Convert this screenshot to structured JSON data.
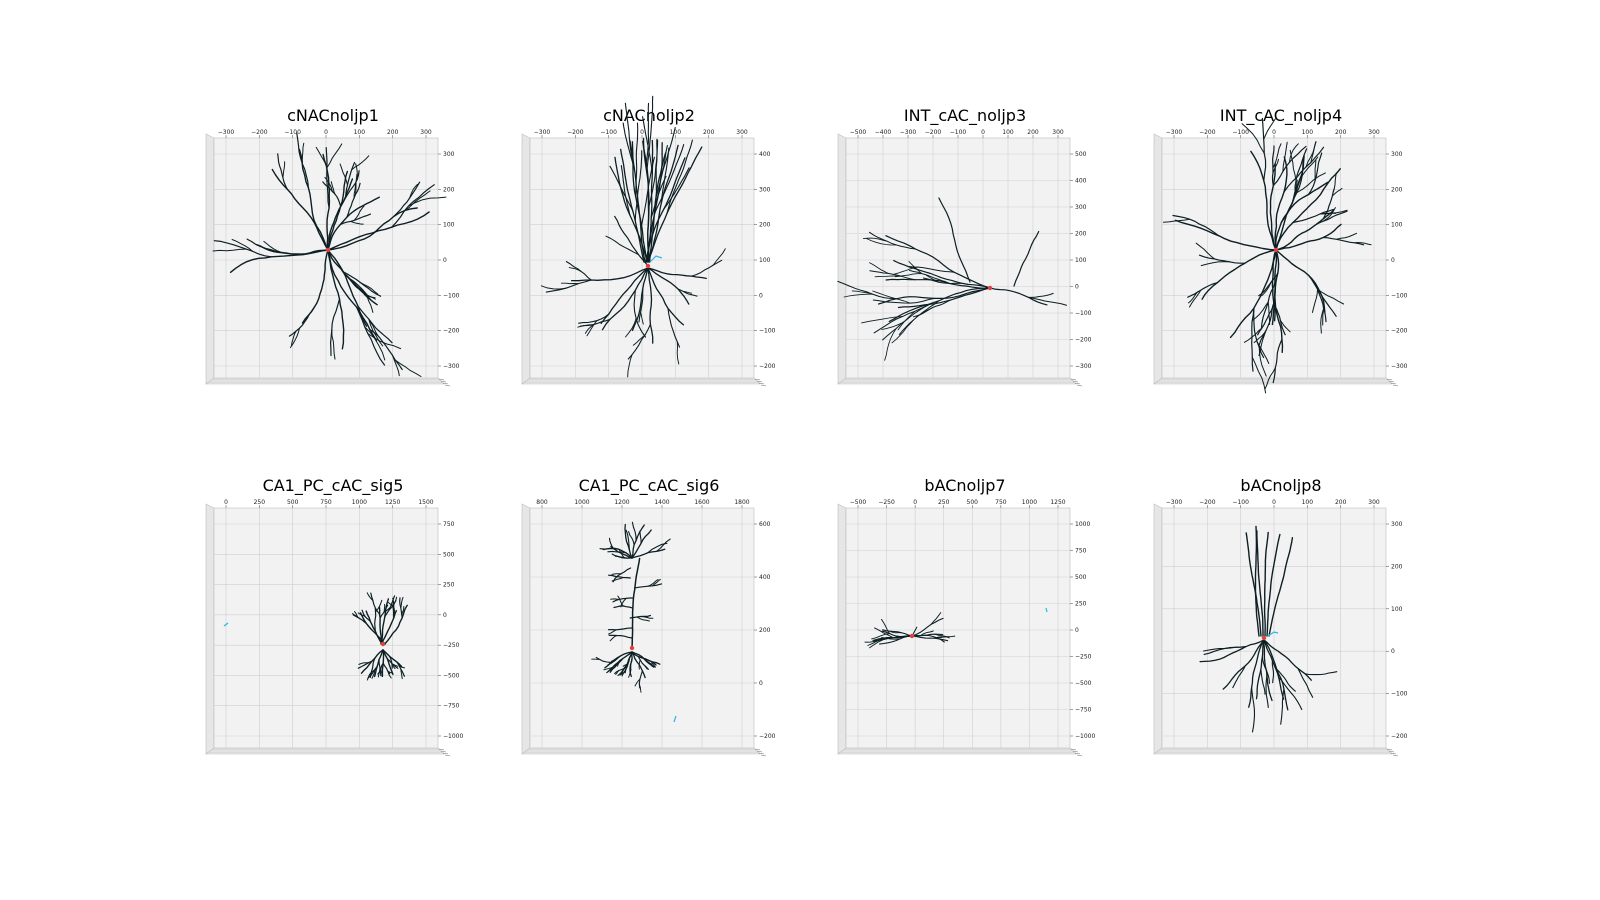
{
  "panels": [
    {
      "title": "cNACnoljp1",
      "x_ticks": [
        "−300",
        "−200",
        "−100",
        "0",
        "100",
        "200",
        "300"
      ],
      "y_ticks": [
        "300",
        "200",
        "100",
        "0",
        "−100",
        "−200",
        "−300"
      ],
      "morph": "star",
      "markers": []
    },
    {
      "title": "cNACnoljp2",
      "x_ticks": [
        "−300",
        "−200",
        "−100",
        "0",
        "100",
        "200",
        "300"
      ],
      "y_ticks": [
        "400",
        "300",
        "200",
        "100",
        "0",
        "−100",
        "−200"
      ],
      "morph": "pyramidal",
      "markers": []
    },
    {
      "title": "INT_cAC_noljp3",
      "x_ticks": [
        "−500",
        "−400",
        "−300",
        "−200",
        "−100",
        "0",
        "100",
        "200",
        "300"
      ],
      "y_ticks": [
        "500",
        "400",
        "300",
        "200",
        "100",
        "0",
        "−100",
        "−200",
        "−300"
      ],
      "morph": "horizontal",
      "markers": []
    },
    {
      "title": "INT_cAC_noljp4",
      "x_ticks": [
        "−300",
        "−200",
        "−100",
        "0",
        "100",
        "200",
        "300"
      ],
      "y_ticks": [
        "300",
        "200",
        "100",
        "0",
        "−100",
        "−200",
        "−300"
      ],
      "morph": "star",
      "markers": []
    },
    {
      "title": "CA1_PC_cAC_sig5",
      "x_ticks": [
        "0",
        "250",
        "500",
        "750",
        "1000",
        "1250",
        "1500"
      ],
      "y_ticks": [
        "750",
        "500",
        "250",
        "0",
        "−250",
        "−500",
        "−750",
        "−1000"
      ],
      "morph": "small_pyr_right",
      "markers": [
        "cyan_left"
      ]
    },
    {
      "title": "CA1_PC_cAC_sig6",
      "x_ticks": [
        "800",
        "1000",
        "1200",
        "1400",
        "1600",
        "1800"
      ],
      "y_ticks": [
        "600",
        "400",
        "200",
        "0",
        "−200"
      ],
      "morph": "tall_pyr",
      "markers": [
        "cyan_bottom"
      ]
    },
    {
      "title": "bACnoljp7",
      "x_ticks": [
        "−500",
        "−250",
        "0",
        "250",
        "500",
        "750",
        "1000",
        "1250"
      ],
      "y_ticks": [
        "1000",
        "750",
        "500",
        "250",
        "0",
        "−250",
        "−500",
        "−750",
        "−1000"
      ],
      "morph": "tiny_horizontal",
      "markers": [
        "cyan_right"
      ]
    },
    {
      "title": "bACnoljp8",
      "x_ticks": [
        "−300",
        "−200",
        "−100",
        "0",
        "100",
        "200",
        "300"
      ],
      "y_ticks": [
        "300",
        "200",
        "100",
        "0",
        "−100",
        "−200"
      ],
      "morph": "vertical_bipolar",
      "markers": []
    }
  ],
  "colors": {
    "neurite": "#0d1f24",
    "soma": "#e04040",
    "axon": "#2ab6e8",
    "pane": "#f2f2f2",
    "grid": "#cfcfcf"
  }
}
